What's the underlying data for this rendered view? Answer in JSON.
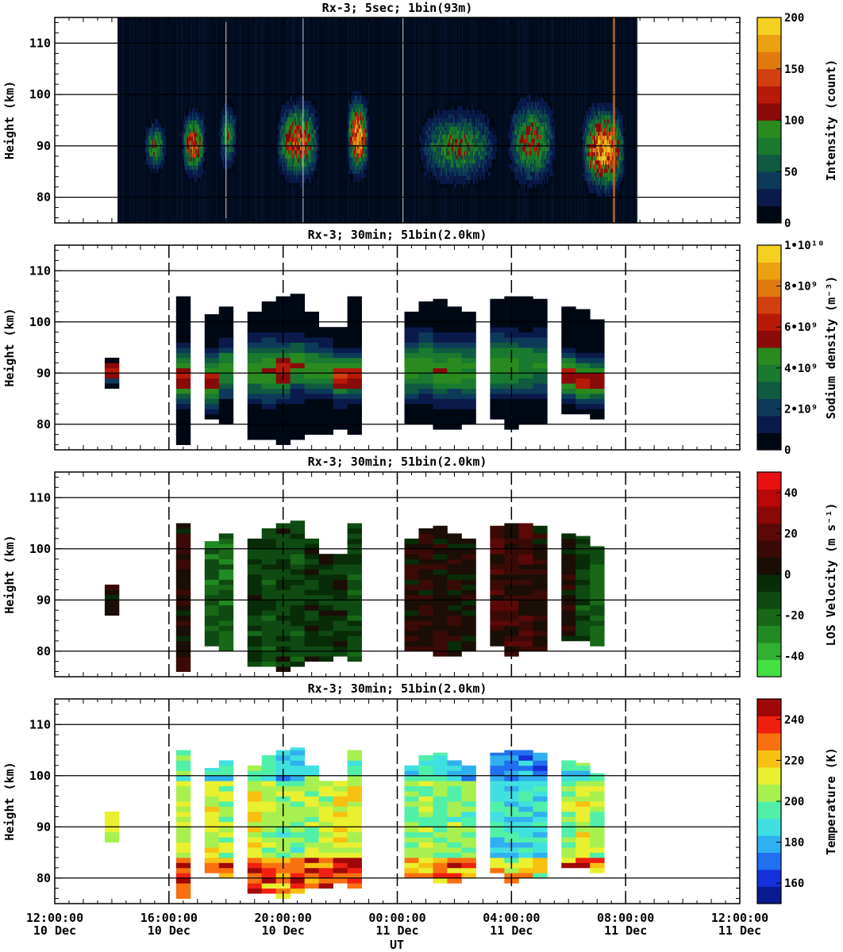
{
  "figure": {
    "xlabel": "UT",
    "x_ticks": [
      {
        "time": "12:00:00",
        "date": "10 Dec",
        "hour": 0
      },
      {
        "time": "16:00:00",
        "date": "10 Dec",
        "hour": 4
      },
      {
        "time": "20:00:00",
        "date": "10 Dec",
        "hour": 8
      },
      {
        "time": "00:00:00",
        "date": "11 Dec",
        "hour": 12
      },
      {
        "time": "04:00:00",
        "date": "11 Dec",
        "hour": 16
      },
      {
        "time": "08:00:00",
        "date": "11 Dec",
        "hour": 20
      },
      {
        "time": "12:00:00",
        "date": "11 Dec",
        "hour": 24
      }
    ]
  },
  "chart_data": [
    {
      "type": "heatmap",
      "title": "Rx-3;  5sec; 1bin(93m)",
      "ylabel": "Height (km)",
      "ylim": [
        75,
        115
      ],
      "yticks": [
        80,
        90,
        100,
        110
      ],
      "colorbar": {
        "label": "Intensity (count)",
        "ticks": [
          "0",
          "50",
          "100",
          "150",
          "200"
        ],
        "range": [
          0,
          200
        ],
        "colors": [
          "#000814",
          "#0a1a4a",
          "#0e3a5a",
          "#0f5a40",
          "#1a7a30",
          "#2a8a20",
          "#8a0a0a",
          "#b81a0a",
          "#d24010",
          "#e07a10",
          "#eaa010",
          "#f5d020"
        ]
      },
      "data_extent_hours": [
        2.2,
        20.4
      ],
      "layers": [
        {
          "t0": 3.1,
          "t1": 3.9,
          "h0": 84,
          "h1": 95,
          "peak": 110
        },
        {
          "t0": 4.4,
          "t1": 5.3,
          "h0": 83,
          "h1": 97,
          "peak": 150
        },
        {
          "t0": 5.7,
          "t1": 6.4,
          "h0": 84,
          "h1": 99,
          "peak": 90
        },
        {
          "t0": 7.7,
          "t1": 9.3,
          "h0": 82,
          "h1": 99,
          "peak": 150
        },
        {
          "t0": 10.2,
          "t1": 11.0,
          "h0": 83,
          "h1": 100,
          "peak": 190
        },
        {
          "t0": 12.6,
          "t1": 15.6,
          "h0": 81,
          "h1": 98,
          "peak": 100
        },
        {
          "t0": 15.8,
          "t1": 17.6,
          "h0": 81,
          "h1": 100,
          "peak": 120
        },
        {
          "t0": 18.4,
          "t1": 20.0,
          "h0": 80,
          "h1": 98,
          "peak": 200
        }
      ]
    },
    {
      "type": "heatmap",
      "title": "Rx-3; 30min; 51bin(2.0km)",
      "ylabel": "Height (km)",
      "ylim": [
        75,
        115
      ],
      "yticks": [
        80,
        90,
        100,
        110
      ],
      "colorbar": {
        "label": "Sodium density (m⁻³)",
        "ticks": [
          "0",
          "2•10⁹",
          "4•10⁹",
          "6•10⁹",
          "8•10⁹",
          "1•10¹⁰"
        ],
        "range": [
          0,
          10
        ],
        "colors": [
          "#000814",
          "#0a1a4a",
          "#0e3a5a",
          "#0f5a40",
          "#1a7a30",
          "#2a8a20",
          "#8a0a0a",
          "#b81a0a",
          "#d24010",
          "#e07a10",
          "#eaa010",
          "#f5d020"
        ]
      },
      "columns": [
        {
          "t": 2.0,
          "h0": 87,
          "h1": 93,
          "peak": 6.5,
          "center": 90,
          "width": 2.5
        },
        {
          "t": 4.5,
          "h0": 76,
          "h1": 105,
          "peak": 6.2,
          "center": 89,
          "width": 6
        },
        {
          "t": 5.5,
          "h0": 81,
          "h1": 101.5,
          "peak": 5.8,
          "center": 88,
          "width": 6
        },
        {
          "t": 6.0,
          "h0": 80,
          "h1": 103,
          "peak": 4.6,
          "center": 90,
          "width": 6
        },
        {
          "t": 7.0,
          "h0": 77,
          "h1": 102,
          "peak": 4.8,
          "center": 90,
          "width": 7
        },
        {
          "t": 7.5,
          "h0": 77,
          "h1": 104,
          "peak": 5.0,
          "center": 90,
          "width": 7
        },
        {
          "t": 8.0,
          "h0": 76,
          "h1": 105,
          "peak": 6.2,
          "center": 90,
          "width": 6
        },
        {
          "t": 8.5,
          "h0": 77,
          "h1": 105.5,
          "peak": 5.2,
          "center": 91,
          "width": 6
        },
        {
          "t": 9.0,
          "h0": 78,
          "h1": 102,
          "peak": 4.8,
          "center": 90,
          "width": 6
        },
        {
          "t": 9.5,
          "h0": 78,
          "h1": 99,
          "peak": 4.6,
          "center": 90,
          "width": 6
        },
        {
          "t": 10.0,
          "h0": 79,
          "h1": 99,
          "peak": 6.5,
          "center": 89,
          "width": 5
        },
        {
          "t": 10.5,
          "h0": 78,
          "h1": 105,
          "peak": 6.2,
          "center": 89,
          "width": 5
        },
        {
          "t": 12.5,
          "h0": 80,
          "h1": 102,
          "peak": 4.6,
          "center": 90,
          "width": 7
        },
        {
          "t": 13.0,
          "h0": 80,
          "h1": 104,
          "peak": 4.8,
          "center": 91,
          "width": 7
        },
        {
          "t": 13.5,
          "h0": 79,
          "h1": 104.5,
          "peak": 4.9,
          "center": 90,
          "width": 7
        },
        {
          "t": 14.0,
          "h0": 79,
          "h1": 103,
          "peak": 4.6,
          "center": 90,
          "width": 7
        },
        {
          "t": 14.5,
          "h0": 80,
          "h1": 102,
          "peak": 4.3,
          "center": 90,
          "width": 7
        },
        {
          "t": 15.5,
          "h0": 81,
          "h1": 104.5,
          "peak": 4.6,
          "center": 91,
          "width": 7
        },
        {
          "t": 16.0,
          "h0": 79,
          "h1": 105,
          "peak": 4.6,
          "center": 91,
          "width": 7
        },
        {
          "t": 16.5,
          "h0": 80,
          "h1": 105,
          "peak": 4.2,
          "center": 91,
          "width": 7
        },
        {
          "t": 17.0,
          "h0": 80,
          "h1": 104.5,
          "peak": 4.0,
          "center": 91,
          "width": 7
        },
        {
          "t": 18.0,
          "h0": 82,
          "h1": 103,
          "peak": 6.0,
          "center": 89,
          "width": 5
        },
        {
          "t": 18.5,
          "h0": 82,
          "h1": 102.5,
          "peak": 6.2,
          "center": 88,
          "width": 5
        },
        {
          "t": 19.0,
          "h0": 81,
          "h1": 100.5,
          "peak": 5.5,
          "center": 88,
          "width": 5
        }
      ]
    },
    {
      "type": "heatmap",
      "title": "Rx-3; 30min; 51bin(2.0km)",
      "ylabel": "Height (km)",
      "ylim": [
        75,
        115
      ],
      "yticks": [
        80,
        90,
        100,
        110
      ],
      "colorbar": {
        "label": "LOS Velocity (m s⁻¹)",
        "ticks": [
          "-40",
          "-20",
          "0",
          "20",
          "40"
        ],
        "tick_values": [
          -40,
          -20,
          0,
          20,
          40
        ],
        "range": [
          -50,
          50
        ],
        "colors": [
          "#44e044",
          "#32b032",
          "#228a22",
          "#186818",
          "#0e4a12",
          "#082c08",
          "#1a0e06",
          "#3a0a06",
          "#5a0808",
          "#8a0808",
          "#b80808",
          "#e81010"
        ]
      },
      "columns": [
        {
          "t": 2.0,
          "h0": 87,
          "h1": 93,
          "v": 6
        },
        {
          "t": 4.5,
          "h0": 76,
          "h1": 105,
          "v": 8
        },
        {
          "t": 5.5,
          "h0": 81,
          "h1": 101.5,
          "v": -18
        },
        {
          "t": 6.0,
          "h0": 80,
          "h1": 103,
          "v": -20
        },
        {
          "t": 7.0,
          "h0": 77,
          "h1": 102,
          "v": -8
        },
        {
          "t": 7.5,
          "h0": 77,
          "h1": 104,
          "v": -10
        },
        {
          "t": 8.0,
          "h0": 76,
          "h1": 105,
          "v": -8
        },
        {
          "t": 8.5,
          "h0": 77,
          "h1": 105.5,
          "v": -10
        },
        {
          "t": 9.0,
          "h0": 78,
          "h1": 102,
          "v": -6
        },
        {
          "t": 9.5,
          "h0": 78,
          "h1": 99,
          "v": -4
        },
        {
          "t": 10.0,
          "h0": 79,
          "h1": 99,
          "v": -4
        },
        {
          "t": 10.5,
          "h0": 78,
          "h1": 105,
          "v": -12
        },
        {
          "t": 12.5,
          "h0": 80,
          "h1": 102,
          "v": 4
        },
        {
          "t": 13.0,
          "h0": 80,
          "h1": 104,
          "v": 8
        },
        {
          "t": 13.5,
          "h0": 79,
          "h1": 104.5,
          "v": 6
        },
        {
          "t": 14.0,
          "h0": 79,
          "h1": 103,
          "v": 4
        },
        {
          "t": 14.5,
          "h0": 80,
          "h1": 102,
          "v": 2
        },
        {
          "t": 15.5,
          "h0": 81,
          "h1": 104.5,
          "v": 12
        },
        {
          "t": 16.0,
          "h0": 79,
          "h1": 105,
          "v": 10
        },
        {
          "t": 16.5,
          "h0": 80,
          "h1": 105,
          "v": 12
        },
        {
          "t": 17.0,
          "h0": 80,
          "h1": 104.5,
          "v": 8
        },
        {
          "t": 18.0,
          "h0": 82,
          "h1": 103,
          "v": 4
        },
        {
          "t": 18.5,
          "h0": 82,
          "h1": 102.5,
          "v": -10
        },
        {
          "t": 19.0,
          "h0": 81,
          "h1": 100.5,
          "v": -16
        }
      ]
    },
    {
      "type": "heatmap",
      "title": "Rx-3; 30min; 51bin(2.0km)",
      "ylabel": "Height (km)",
      "ylim": [
        75,
        115
      ],
      "yticks": [
        80,
        90,
        100,
        110
      ],
      "colorbar": {
        "label": "Temperature (K)",
        "ticks": [
          "160",
          "180",
          "200",
          "220",
          "240"
        ],
        "tick_values": [
          160,
          180,
          200,
          220,
          240
        ],
        "range": [
          150,
          250
        ],
        "colors": [
          "#0a1a90",
          "#1430d8",
          "#2070f0",
          "#30b0f0",
          "#40e0e0",
          "#50f0a8",
          "#a8f050",
          "#e8f030",
          "#f8c010",
          "#f87010",
          "#f02010",
          "#a00808"
        ]
      },
      "columns": [
        {
          "t": 2.0,
          "h0": 87,
          "h1": 93,
          "base": 205
        },
        {
          "t": 4.5,
          "h0": 76,
          "h1": 105,
          "base": 210
        },
        {
          "t": 5.5,
          "h0": 81,
          "h1": 101.5,
          "base": 208
        },
        {
          "t": 6.0,
          "h0": 80,
          "h1": 103,
          "base": 205
        },
        {
          "t": 7.0,
          "h0": 77,
          "h1": 102,
          "base": 212
        },
        {
          "t": 7.5,
          "h0": 77,
          "h1": 104,
          "base": 205
        },
        {
          "t": 8.0,
          "h0": 76,
          "h1": 105,
          "base": 200
        },
        {
          "t": 8.5,
          "h0": 77,
          "h1": 105.5,
          "base": 200
        },
        {
          "t": 9.0,
          "h0": 78,
          "h1": 102,
          "base": 205
        },
        {
          "t": 9.5,
          "h0": 78,
          "h1": 99,
          "base": 208
        },
        {
          "t": 10.0,
          "h0": 79,
          "h1": 99,
          "base": 212
        },
        {
          "t": 10.5,
          "h0": 78,
          "h1": 105,
          "base": 210
        },
        {
          "t": 12.5,
          "h0": 80,
          "h1": 102,
          "base": 200
        },
        {
          "t": 13.0,
          "h0": 80,
          "h1": 104,
          "base": 202
        },
        {
          "t": 13.5,
          "h0": 79,
          "h1": 104.5,
          "base": 200
        },
        {
          "t": 14.0,
          "h0": 79,
          "h1": 103,
          "base": 200
        },
        {
          "t": 14.5,
          "h0": 80,
          "h1": 102,
          "base": 198
        },
        {
          "t": 15.5,
          "h0": 81,
          "h1": 104.5,
          "base": 190
        },
        {
          "t": 16.0,
          "h0": 79,
          "h1": 105,
          "base": 188
        },
        {
          "t": 16.5,
          "h0": 80,
          "h1": 105,
          "base": 192
        },
        {
          "t": 17.0,
          "h0": 80,
          "h1": 104.5,
          "base": 190
        },
        {
          "t": 18.0,
          "h0": 82,
          "h1": 103,
          "base": 205
        },
        {
          "t": 18.5,
          "h0": 82,
          "h1": 102.5,
          "base": 210
        },
        {
          "t": 19.0,
          "h0": 81,
          "h1": 100.5,
          "base": 205
        }
      ]
    }
  ]
}
